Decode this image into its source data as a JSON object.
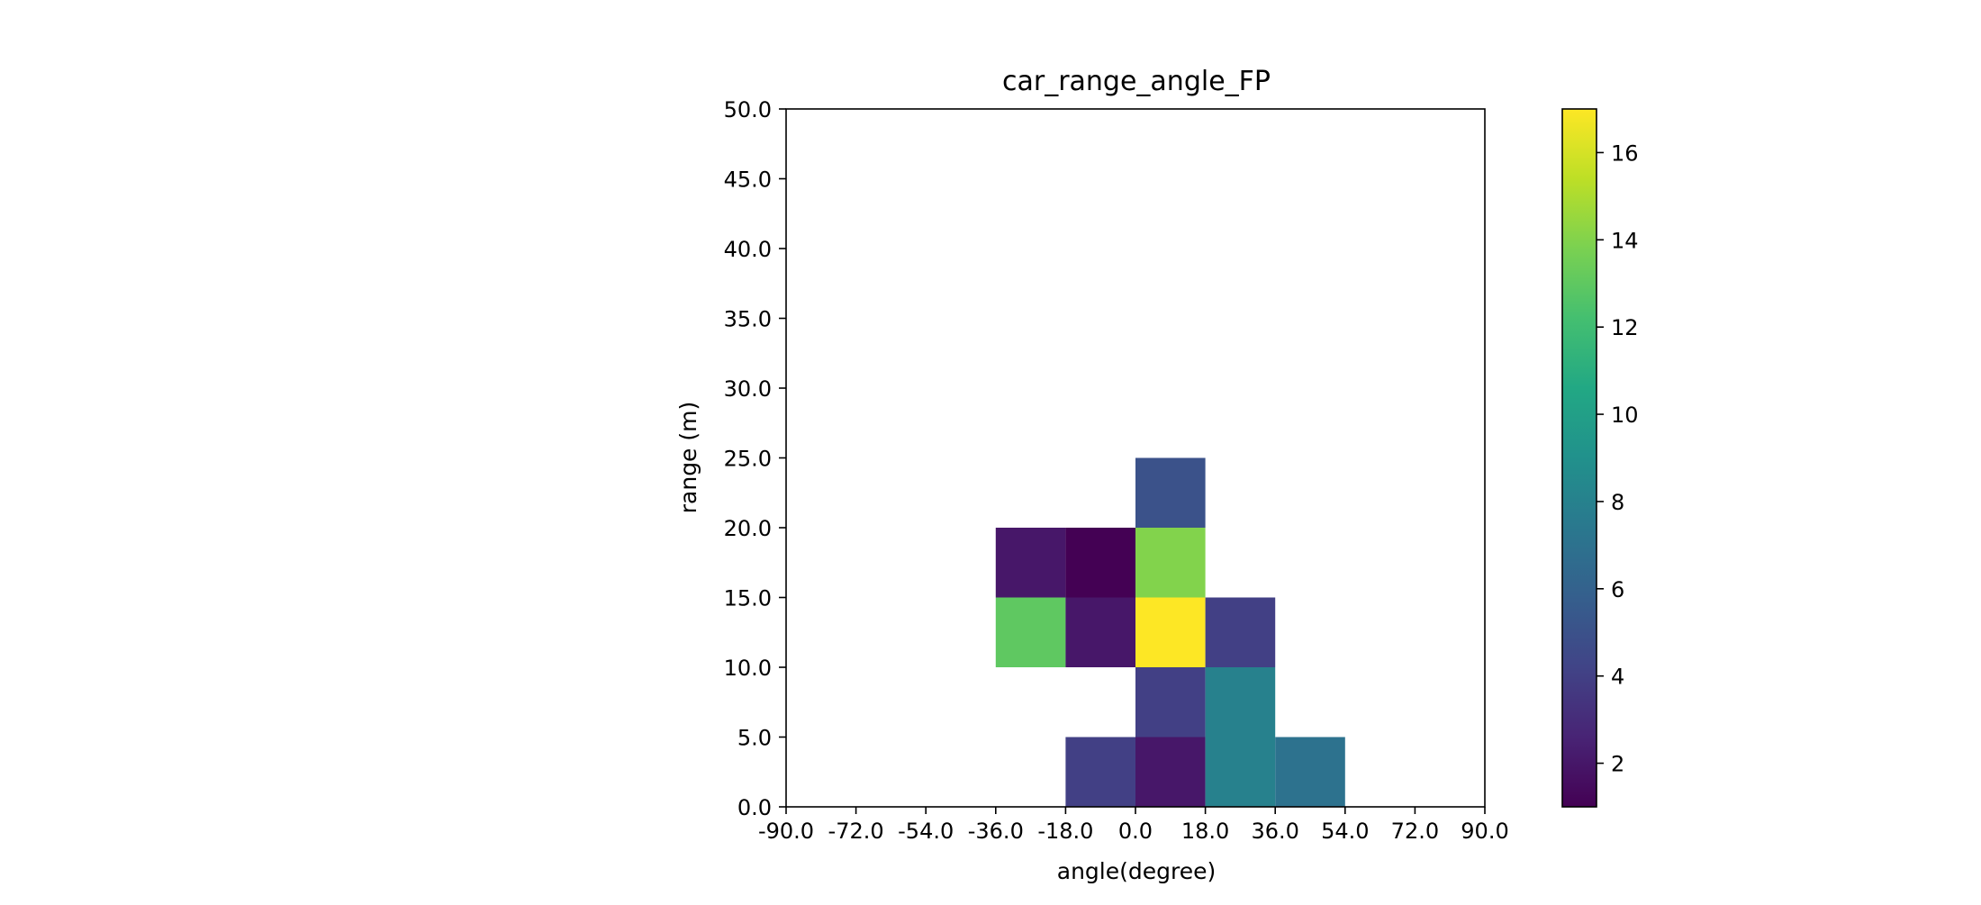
{
  "chart_data": {
    "type": "heatmap",
    "title": "car_range_angle_FP",
    "xlabel": "angle(degree)",
    "ylabel": "range (m)",
    "xlim": [
      -90,
      90
    ],
    "ylim": [
      0,
      50
    ],
    "xticks": [
      "-90.0",
      "-72.0",
      "-54.0",
      "-36.0",
      "-18.0",
      "0.0",
      "18.0",
      "36.0",
      "54.0",
      "72.0",
      "90.0"
    ],
    "yticks": [
      "0.0",
      "5.0",
      "10.0",
      "15.0",
      "20.0",
      "25.0",
      "30.0",
      "35.0",
      "40.0",
      "45.0",
      "50.0"
    ],
    "x_bin_width": 18,
    "y_bin_width": 5,
    "cells": [
      {
        "x": [
          -18,
          0
        ],
        "y": [
          0,
          5
        ],
        "value": 4
      },
      {
        "x": [
          0,
          18
        ],
        "y": [
          0,
          5
        ],
        "value": 2
      },
      {
        "x": [
          18,
          36
        ],
        "y": [
          0,
          5
        ],
        "value": 8
      },
      {
        "x": [
          36,
          54
        ],
        "y": [
          0,
          5
        ],
        "value": 7
      },
      {
        "x": [
          0,
          18
        ],
        "y": [
          5,
          10
        ],
        "value": 4
      },
      {
        "x": [
          18,
          36
        ],
        "y": [
          5,
          10
        ],
        "value": 8
      },
      {
        "x": [
          -36,
          -18
        ],
        "y": [
          10,
          15
        ],
        "value": 13
      },
      {
        "x": [
          -18,
          0
        ],
        "y": [
          10,
          15
        ],
        "value": 2
      },
      {
        "x": [
          0,
          18
        ],
        "y": [
          10,
          15
        ],
        "value": 17
      },
      {
        "x": [
          18,
          36
        ],
        "y": [
          10,
          15
        ],
        "value": 4
      },
      {
        "x": [
          -36,
          -18
        ],
        "y": [
          15,
          20
        ],
        "value": 2
      },
      {
        "x": [
          -18,
          0
        ],
        "y": [
          15,
          20
        ],
        "value": 1
      },
      {
        "x": [
          0,
          18
        ],
        "y": [
          15,
          20
        ],
        "value": 14
      },
      {
        "x": [
          0,
          18
        ],
        "y": [
          20,
          25
        ],
        "value": 5
      }
    ],
    "colorbar": {
      "colormap": "viridis",
      "min": 1,
      "max": 17,
      "ticks": [
        "2",
        "4",
        "6",
        "8",
        "10",
        "12",
        "14",
        "16"
      ]
    },
    "grid": false,
    "empty_cell_color": "#ffffff"
  }
}
